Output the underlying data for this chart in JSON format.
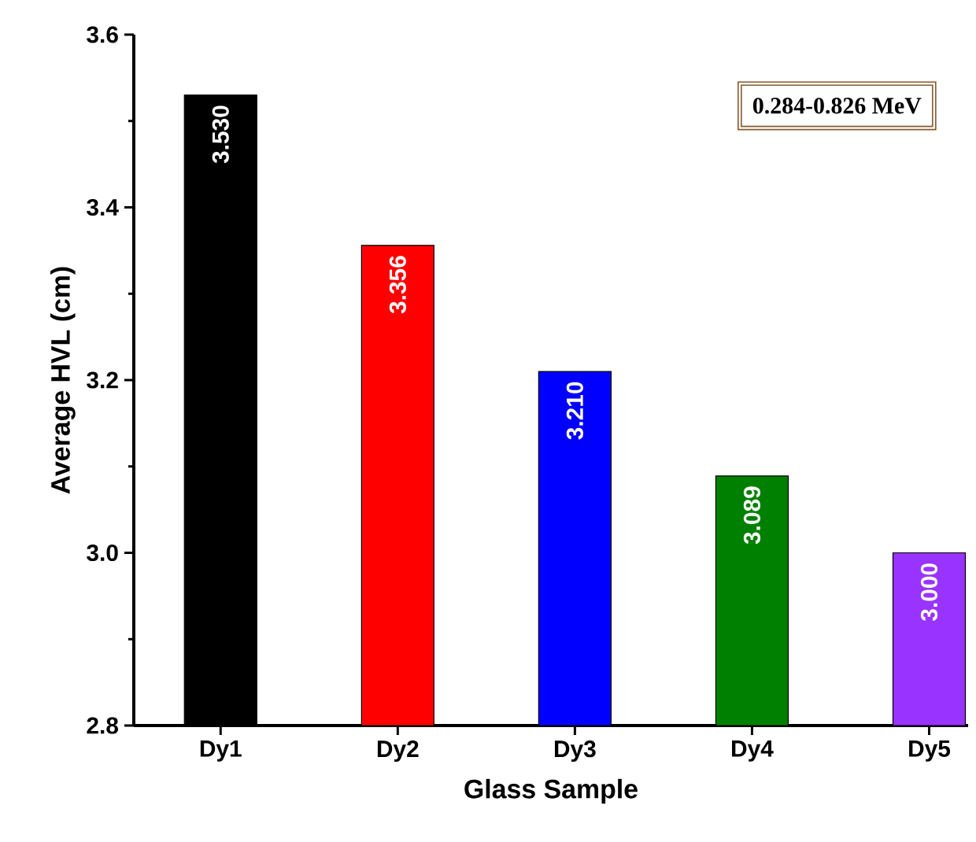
{
  "chart_data": {
    "type": "bar",
    "xlabel": "Glass Sample",
    "ylabel": "Average HVL (cm)",
    "categories": [
      "Dy1",
      "Dy2",
      "Dy3",
      "Dy4",
      "Dy5"
    ],
    "values": [
      3.53,
      3.356,
      3.21,
      3.089,
      3.0
    ],
    "value_labels": [
      "3.530",
      "3.356",
      "3.210",
      "3.089",
      "3.000"
    ],
    "colors": [
      "#000000",
      "#ff0000",
      "#0000ff",
      "#008000",
      "#9933ff"
    ],
    "ylim": [
      2.8,
      3.6
    ],
    "yticks": [
      2.8,
      {
        "value": 3,
        "label": "3.0"
      },
      3.2,
      3.4,
      3.6
    ],
    "annotations": [
      "0.284-0.826 MeV"
    ]
  }
}
